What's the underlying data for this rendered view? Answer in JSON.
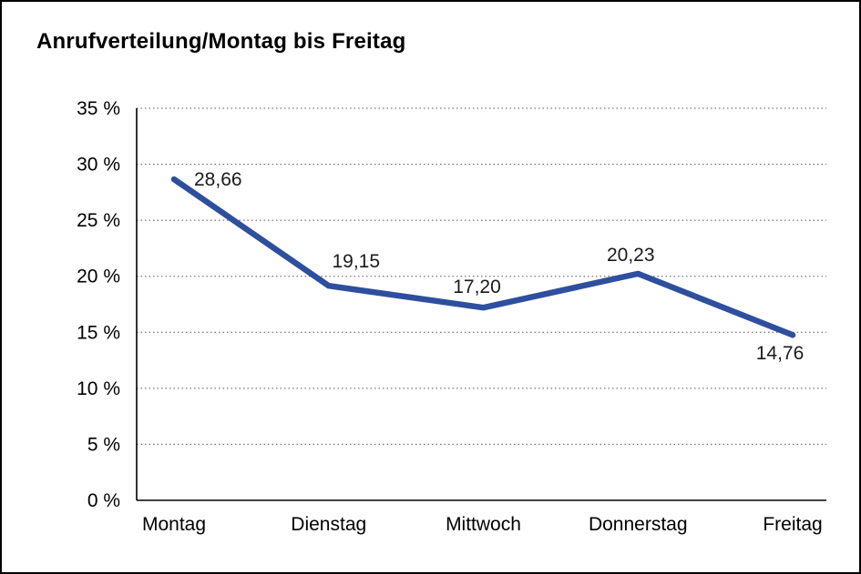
{
  "chart_data": {
    "type": "line",
    "title": "Anrufverteilung/Montag bis Freitag",
    "categories": [
      "Montag",
      "Dienstag",
      "Mittwoch",
      "Donnerstag",
      "Freitag"
    ],
    "values": [
      28.66,
      19.15,
      17.2,
      20.23,
      14.76
    ],
    "value_labels": [
      "28,66",
      "19,15",
      "17,20",
      "20,23",
      "14,76"
    ],
    "ylim": [
      0,
      35
    ],
    "ytick_step": 5,
    "ytick_labels": [
      "0 %",
      "5 %",
      "10 %",
      "15 %",
      "20 %",
      "25 %",
      "30 %",
      "35 %"
    ],
    "grid": "horizontal-dotted",
    "legend": "none",
    "xlabel": "",
    "ylabel": "",
    "line_color": "#2e4f9e",
    "axis_color": "#000000",
    "gridline_color": "#555555"
  }
}
